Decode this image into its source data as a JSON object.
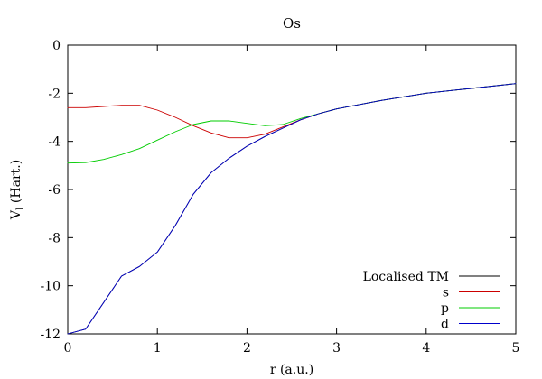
{
  "chart_data": {
    "type": "line",
    "title": "Os",
    "xlabel": "r (a.u.)",
    "ylabel_main": "V",
    "ylabel_sub": "l",
    "ylabel_rest": " (Hart.)",
    "xlim": [
      0,
      5
    ],
    "ylim": [
      -12,
      0
    ],
    "xticks": [
      "0",
      "1",
      "2",
      "3",
      "4",
      "5"
    ],
    "yticks": [
      "0",
      "-2",
      "-4",
      "-6",
      "-8",
      "-10",
      "-12"
    ],
    "grid": false,
    "legend_position": "bottom-right",
    "series": [
      {
        "name": "Localised TM",
        "color": "#000000",
        "x": [
          0,
          0.2,
          0.4,
          0.6,
          0.8,
          1.0,
          1.2,
          1.4,
          1.6,
          1.8,
          2.0,
          2.2,
          2.4,
          2.6,
          2.8,
          3.0,
          3.5,
          4.0,
          4.5,
          5.0
        ],
        "y": [
          -12.0,
          -11.8,
          -10.7,
          -9.6,
          -9.2,
          -8.6,
          -7.5,
          -6.2,
          -5.3,
          -4.7,
          -4.2,
          -3.8,
          -3.45,
          -3.1,
          -2.85,
          -2.65,
          -2.3,
          -2.0,
          -1.8,
          -1.6
        ]
      },
      {
        "name": "s",
        "color": "#cc0000",
        "x": [
          0,
          0.2,
          0.4,
          0.6,
          0.8,
          1.0,
          1.2,
          1.4,
          1.6,
          1.8,
          2.0,
          2.2,
          2.4,
          2.6,
          2.8,
          3.0,
          3.5,
          4.0,
          4.5,
          5.0
        ],
        "y": [
          -2.6,
          -2.6,
          -2.55,
          -2.5,
          -2.5,
          -2.7,
          -3.0,
          -3.35,
          -3.65,
          -3.85,
          -3.85,
          -3.7,
          -3.4,
          -3.1,
          -2.85,
          -2.65,
          -2.3,
          -2.0,
          -1.8,
          -1.6
        ]
      },
      {
        "name": "p",
        "color": "#00cc00",
        "x": [
          0,
          0.2,
          0.4,
          0.6,
          0.8,
          1.0,
          1.2,
          1.4,
          1.6,
          1.8,
          2.0,
          2.2,
          2.4,
          2.6,
          2.8,
          3.0,
          3.5,
          4.0,
          4.5,
          5.0
        ],
        "y": [
          -4.9,
          -4.88,
          -4.75,
          -4.55,
          -4.3,
          -3.95,
          -3.6,
          -3.3,
          -3.15,
          -3.15,
          -3.25,
          -3.35,
          -3.3,
          -3.05,
          -2.85,
          -2.65,
          -2.3,
          -2.0,
          -1.8,
          -1.6
        ]
      },
      {
        "name": "d",
        "color": "#0000cc",
        "x": [
          0,
          0.2,
          0.4,
          0.6,
          0.8,
          1.0,
          1.2,
          1.4,
          1.6,
          1.8,
          2.0,
          2.2,
          2.4,
          2.6,
          2.8,
          3.0,
          3.5,
          4.0,
          4.5,
          5.0
        ],
        "y": [
          -12.0,
          -11.8,
          -10.7,
          -9.6,
          -9.2,
          -8.6,
          -7.5,
          -6.2,
          -5.3,
          -4.7,
          -4.2,
          -3.8,
          -3.45,
          -3.1,
          -2.85,
          -2.65,
          -2.3,
          -2.0,
          -1.8,
          -1.6
        ]
      }
    ]
  }
}
